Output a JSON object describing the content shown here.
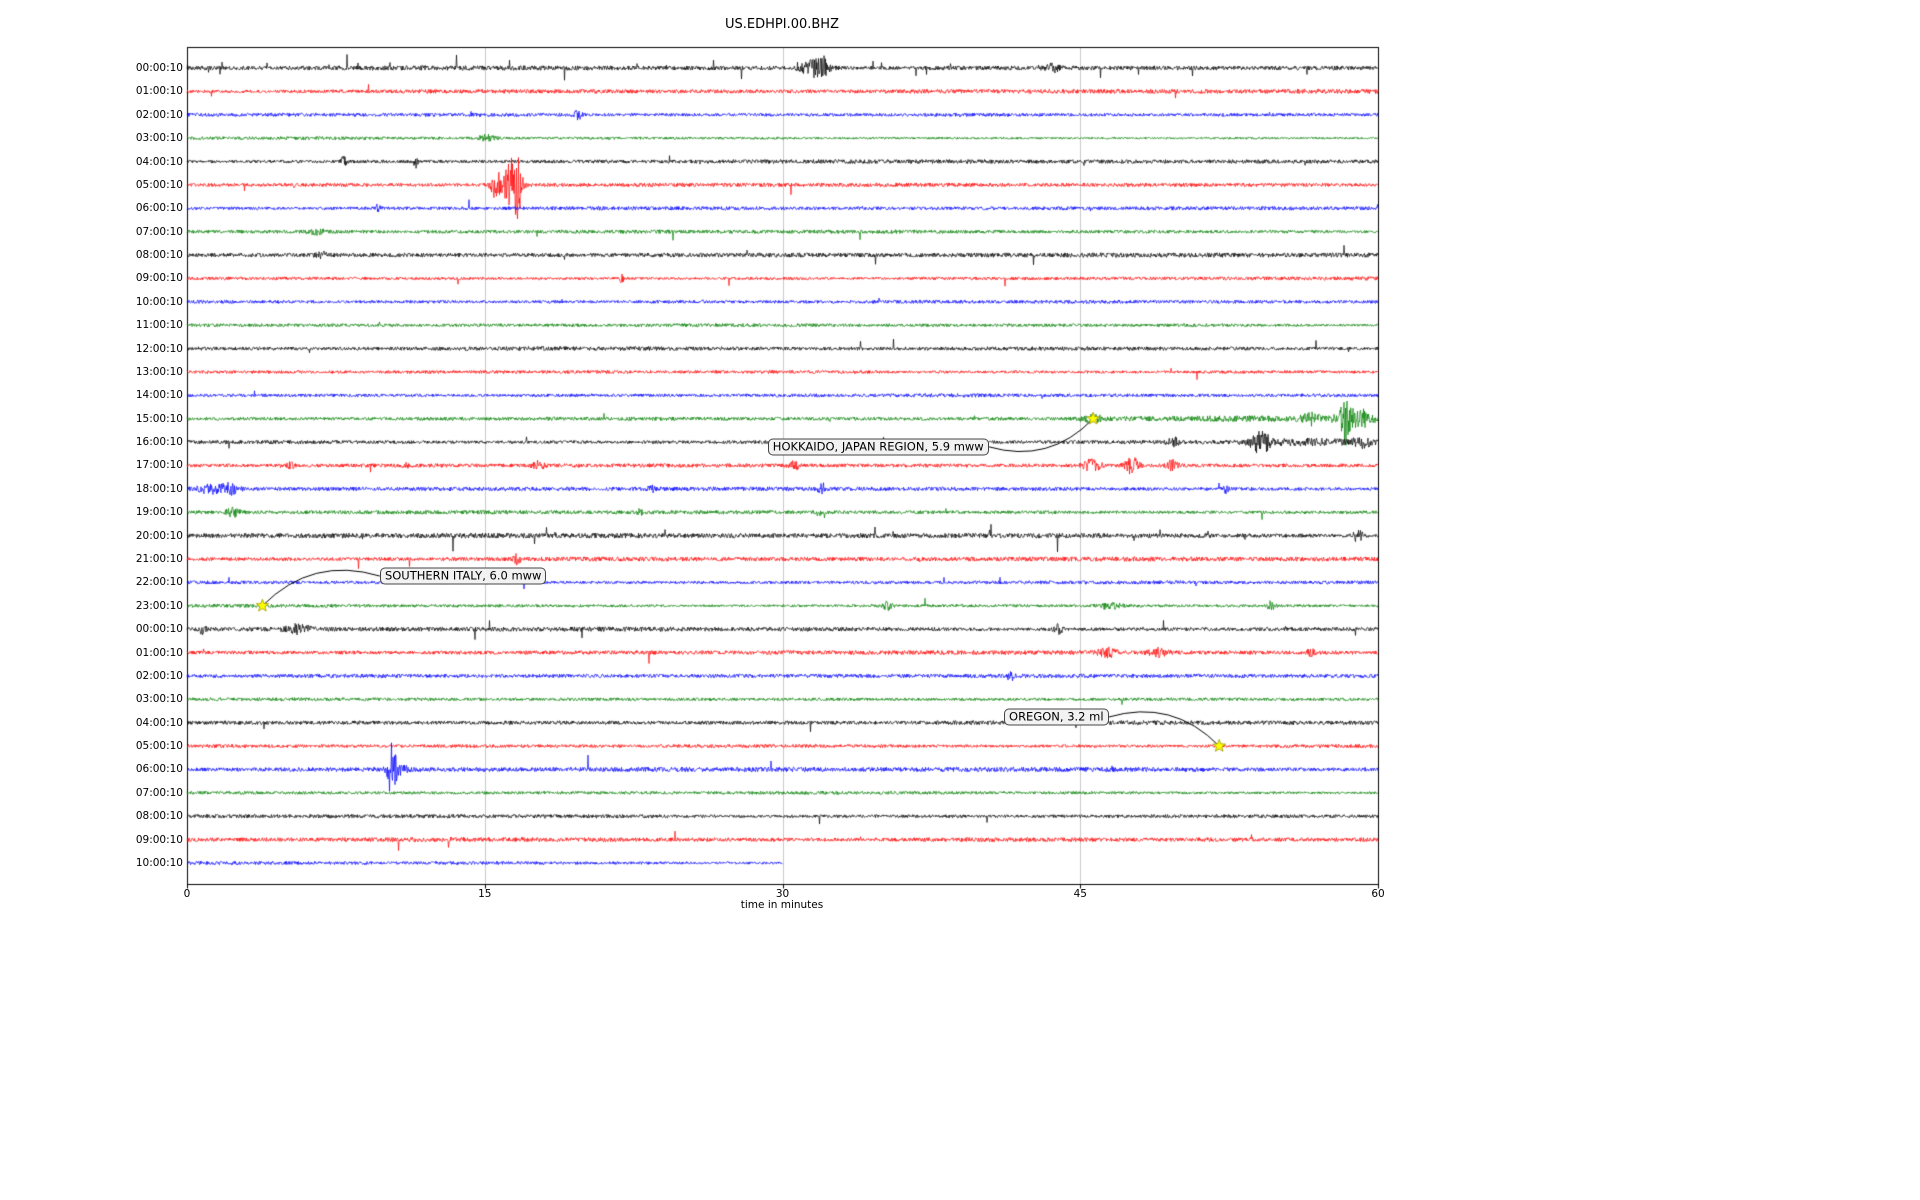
{
  "chart_data": {
    "type": "line",
    "subtype": "seismogram-dayplot",
    "title": "US.EDHPI.00.BHZ",
    "xlabel": "time in minutes",
    "xlim": [
      0,
      60
    ],
    "x_tick_labels": [
      "0",
      "15",
      "30",
      "45",
      "60"
    ],
    "x_tick_values": [
      0,
      15,
      30,
      45,
      60
    ],
    "trace_color_cycle": [
      "#000000",
      "#ff0000",
      "#0000ff",
      "#008000"
    ],
    "grid_color": "#c9c9c9",
    "marker_color": "#ffff00",
    "rows": [
      {
        "label": "00:00:10",
        "noise": 2.1,
        "spikes": 0.9,
        "bursts": [
          {
            "m": 31.6,
            "w": 0.45,
            "a": 8
          },
          {
            "m": 32.1,
            "w": 0.15,
            "a": 6
          },
          {
            "m": 43.6,
            "w": 0.25,
            "a": 4
          }
        ]
      },
      {
        "label": "01:00:10",
        "noise": 1.6,
        "spikes": 0.06,
        "bursts": []
      },
      {
        "label": "02:00:10",
        "noise": 1.7,
        "spikes": 0.06,
        "bursts": [
          {
            "m": 19.7,
            "w": 0.12,
            "a": 5
          }
        ]
      },
      {
        "label": "03:00:10",
        "noise": 1.6,
        "spikes": 0.06,
        "bursts": [
          {
            "m": 15.1,
            "w": 0.3,
            "a": 3
          }
        ]
      },
      {
        "label": "04:00:10",
        "noise": 1.5,
        "spikes": 0.1,
        "bursts": [
          {
            "m": 7.9,
            "w": 0.1,
            "a": 5
          },
          {
            "m": 11.5,
            "w": 0.08,
            "a": 6
          }
        ]
      },
      {
        "label": "05:00:10",
        "noise": 1.6,
        "spikes": 0.06,
        "bursts": [
          {
            "m": 15.6,
            "w": 0.2,
            "a": 14
          },
          {
            "m": 16.4,
            "w": 0.3,
            "a": 26
          },
          {
            "m": 16.7,
            "w": 0.12,
            "a": 18
          }
        ]
      },
      {
        "label": "06:00:10",
        "noise": 1.6,
        "spikes": 0.06,
        "bursts": [
          {
            "m": 9.6,
            "w": 0.1,
            "a": 3
          }
        ]
      },
      {
        "label": "07:00:10",
        "noise": 1.7,
        "spikes": 0.05,
        "bursts": [
          {
            "m": 6.5,
            "w": 0.3,
            "a": 2.5
          }
        ]
      },
      {
        "label": "08:00:10",
        "noise": 1.9,
        "spikes": 0.12,
        "bursts": [
          {
            "m": 6.8,
            "w": 0.2,
            "a": 3
          }
        ]
      },
      {
        "label": "09:00:10",
        "noise": 1.6,
        "spikes": 0.06,
        "bursts": [
          {
            "m": 21.9,
            "w": 0.1,
            "a": 3.5
          }
        ]
      },
      {
        "label": "10:00:10",
        "noise": 1.7,
        "spikes": 0.05,
        "bursts": []
      },
      {
        "label": "11:00:10",
        "noise": 1.6,
        "spikes": 0.05,
        "bursts": []
      },
      {
        "label": "12:00:10",
        "noise": 1.9,
        "spikes": 0.1,
        "bursts": []
      },
      {
        "label": "13:00:10",
        "noise": 1.6,
        "spikes": 0.05,
        "bursts": []
      },
      {
        "label": "14:00:10",
        "noise": 1.7,
        "spikes": 0.05,
        "bursts": []
      },
      {
        "label": "15:00:10",
        "noise": 1.7,
        "spikes": 0.08,
        "bursts": [
          {
            "m": 45.65,
            "w": 0.4,
            "a": 3
          },
          {
            "m": 53,
            "w": 5,
            "a": 1.2
          },
          {
            "m": 56.6,
            "w": 0.3,
            "a": 5
          },
          {
            "m": 58.35,
            "w": 0.12,
            "a": 24
          },
          {
            "m": 58.6,
            "w": 0.5,
            "a": 8
          },
          {
            "m": 59.4,
            "w": 0.3,
            "a": 5
          }
        ]
      },
      {
        "label": "16:00:10",
        "noise": 2.0,
        "spikes": 0.15,
        "bursts": [
          {
            "m": 49.7,
            "w": 0.2,
            "a": 4
          },
          {
            "m": 54.0,
            "w": 0.3,
            "a": 9
          },
          {
            "m": 54.4,
            "w": 0.15,
            "a": 6
          },
          {
            "m": 56.5,
            "w": 2,
            "a": 2.5
          },
          {
            "m": 59.2,
            "w": 0.3,
            "a": 4
          }
        ]
      },
      {
        "label": "17:00:10",
        "noise": 1.7,
        "spikes": 0.1,
        "bursts": [
          {
            "m": 5.2,
            "w": 0.15,
            "a": 3
          },
          {
            "m": 11.0,
            "w": 0.1,
            "a": 3
          },
          {
            "m": 17.7,
            "w": 0.2,
            "a": 4
          },
          {
            "m": 30.6,
            "w": 0.15,
            "a": 4
          },
          {
            "m": 45.6,
            "w": 0.3,
            "a": 6
          },
          {
            "m": 47.6,
            "w": 0.25,
            "a": 8
          },
          {
            "m": 49.6,
            "w": 0.2,
            "a": 5
          }
        ]
      },
      {
        "label": "18:00:10",
        "noise": 1.8,
        "spikes": 0.08,
        "bursts": [
          {
            "m": 1.2,
            "w": 0.5,
            "a": 4
          },
          {
            "m": 2.2,
            "w": 0.3,
            "a": 5
          },
          {
            "m": 23.4,
            "w": 0.1,
            "a": 3
          },
          {
            "m": 32.0,
            "w": 0.12,
            "a": 6
          },
          {
            "m": 52.3,
            "w": 0.15,
            "a": 3.5
          }
        ]
      },
      {
        "label": "19:00:10",
        "noise": 1.7,
        "spikes": 0.06,
        "bursts": [
          {
            "m": 2.3,
            "w": 0.25,
            "a": 4
          },
          {
            "m": 22.8,
            "w": 0.1,
            "a": 3
          },
          {
            "m": 31.8,
            "w": 0.1,
            "a": 3
          }
        ]
      },
      {
        "label": "20:00:10",
        "noise": 2.2,
        "spikes": 0.35,
        "bursts": [
          {
            "m": 59.0,
            "w": 0.15,
            "a": 7
          }
        ]
      },
      {
        "label": "21:00:10",
        "noise": 1.7,
        "spikes": 0.08,
        "bursts": [
          {
            "m": 16.6,
            "w": 0.15,
            "a": 4
          }
        ]
      },
      {
        "label": "22:00:10",
        "noise": 1.7,
        "spikes": 0.05,
        "bursts": []
      },
      {
        "label": "23:00:10",
        "noise": 1.7,
        "spikes": 0.06,
        "bursts": [
          {
            "m": 35.3,
            "w": 0.15,
            "a": 4
          },
          {
            "m": 46.5,
            "w": 0.4,
            "a": 3
          },
          {
            "m": 54.6,
            "w": 0.15,
            "a": 4
          }
        ]
      },
      {
        "label": "00:00:10",
        "noise": 2.0,
        "spikes": 0.2,
        "bursts": [
          {
            "m": 0.8,
            "w": 0.1,
            "a": 6
          },
          {
            "m": 5.6,
            "w": 0.4,
            "a": 4
          },
          {
            "m": 43.9,
            "w": 0.15,
            "a": 5
          }
        ]
      },
      {
        "label": "01:00:10",
        "noise": 1.7,
        "spikes": 0.08,
        "bursts": [
          {
            "m": 46.4,
            "w": 0.3,
            "a": 4
          },
          {
            "m": 48.9,
            "w": 0.3,
            "a": 4
          },
          {
            "m": 56.6,
            "w": 0.15,
            "a": 3
          }
        ]
      },
      {
        "label": "02:00:10",
        "noise": 1.7,
        "spikes": 0.06,
        "bursts": [
          {
            "m": 41.5,
            "w": 0.12,
            "a": 4
          }
        ]
      },
      {
        "label": "03:00:10",
        "noise": 1.7,
        "spikes": 0.05,
        "bursts": []
      },
      {
        "label": "04:00:10",
        "noise": 1.8,
        "spikes": 0.1,
        "bursts": []
      },
      {
        "label": "05:00:10",
        "noise": 1.7,
        "spikes": 0.06,
        "bursts": []
      },
      {
        "label": "06:00:10",
        "noise": 1.7,
        "spikes": 0.06,
        "bursts": [
          {
            "m": 10.3,
            "w": 0.12,
            "a": 22
          },
          {
            "m": 10.55,
            "w": 0.3,
            "a": 9
          }
        ]
      },
      {
        "label": "07:00:10",
        "noise": 1.7,
        "spikes": 0.05,
        "bursts": []
      },
      {
        "label": "08:00:10",
        "noise": 1.9,
        "spikes": 0.1,
        "bursts": []
      },
      {
        "label": "09:00:10",
        "noise": 2.0,
        "spikes": 0.12,
        "bursts": []
      },
      {
        "label": "10:00:10",
        "noise": 1.8,
        "spikes": 0.06,
        "width": 0.5,
        "bursts": []
      }
    ],
    "annotations": [
      {
        "label": "HOKKAIDO, JAPAN REGION, 5.9 mww",
        "star_row": 15,
        "star_minute": 45.65,
        "box_row": 16.2,
        "box_minute": 29.26,
        "connect": "right",
        "curve": 0.3
      },
      {
        "label": "SOUTHERN ITALY, 6.0 mww",
        "star_row": 23,
        "star_minute": 3.8,
        "box_row": 21.73,
        "box_minute": 9.72,
        "connect": "left",
        "curve": 0.3
      },
      {
        "label": "OREGON, 3.2 ml",
        "star_row": 29,
        "star_minute": 52.0,
        "box_row": 27.76,
        "box_minute": 41.16,
        "connect": "right",
        "curve": -0.3
      }
    ]
  }
}
